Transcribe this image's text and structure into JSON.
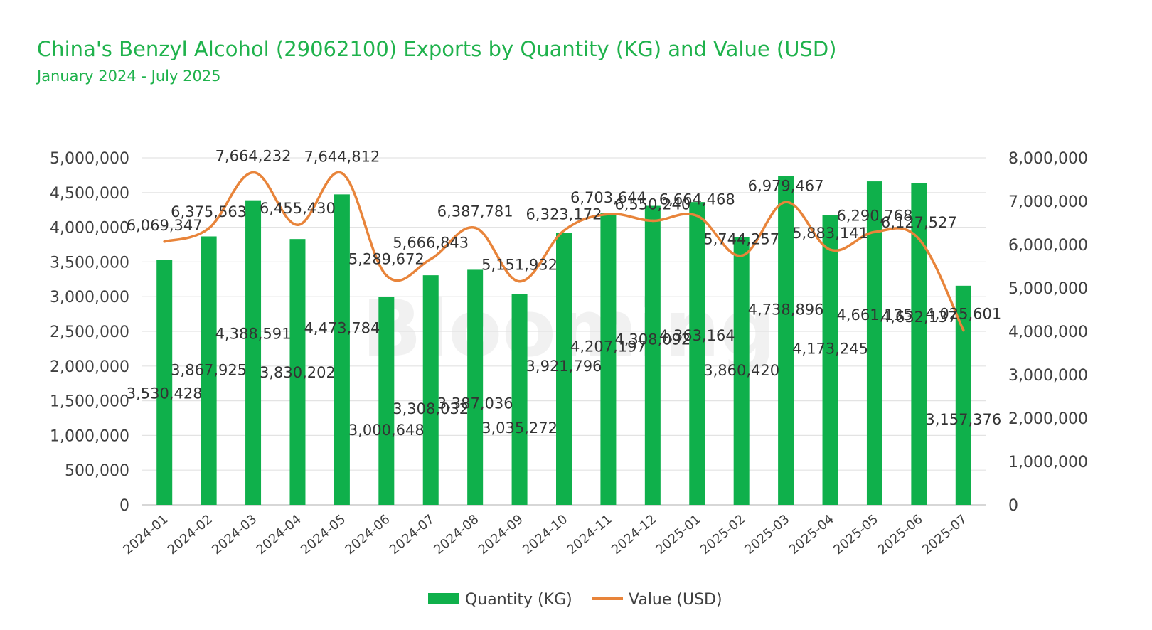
{
  "chart_data": {
    "type": "bar",
    "title": "China's Benzyl Alcohol (29062100) Exports by Quantity (KG) and Value (USD)",
    "subtitle": "January 2024 - July 2025",
    "watermark": "Blooming",
    "categories": [
      "2024-01",
      "2024-02",
      "2024-03",
      "2024-04",
      "2024-05",
      "2024-06",
      "2024-07",
      "2024-08",
      "2024-09",
      "2024-10",
      "2024-11",
      "2024-12",
      "2025-01",
      "2025-02",
      "2025-03",
      "2025-04",
      "2025-05",
      "2025-06",
      "2025-07"
    ],
    "series": [
      {
        "name": "Quantity (KG)",
        "type": "bar",
        "axis": "left",
        "color": "#0fb04b",
        "values": [
          3530428,
          3867925,
          4388591,
          3830202,
          4473784,
          3000648,
          3308032,
          3387036,
          3035272,
          3921796,
          4207197,
          4308092,
          4363164,
          3860420,
          4738896,
          4173245,
          4661135,
          4632137,
          3157376
        ],
        "labels": [
          "3,530,428",
          "3,867,925",
          "4,388,591",
          "3,830,202",
          "4,473,784",
          "3,000,648",
          "3,308,032",
          "3,387,036",
          "3,035,272",
          "3,921,796",
          "4,207,197",
          "4,308,092",
          "4,363,164",
          "3,860,420",
          "4,738,896",
          "4,173,245",
          "4,661,135",
          "4,632,137",
          "3,157,376"
        ]
      },
      {
        "name": "Value (USD)",
        "type": "line",
        "axis": "right",
        "color": "#e8843a",
        "values": [
          6069347,
          6375563,
          7664232,
          6455430,
          7644812,
          5289672,
          5666843,
          6387781,
          5151932,
          6323172,
          6703644,
          6550240,
          6664468,
          5744257,
          6979467,
          5883141,
          6290768,
          6127527,
          4025601
        ],
        "labels": [
          "6,069,347",
          "6,375,563",
          "7,664,232",
          "6,455,430",
          "7,644,812",
          "5,289,672",
          "5,666,843",
          "6,387,781",
          "5,151,932",
          "6,323,172",
          "6,703,644",
          "6,550,240",
          "6,664,468",
          "5,744,257",
          "6,979,467",
          "5,883,141",
          "6,290,768",
          "6,127,527",
          "4,025,601"
        ]
      }
    ],
    "y_left": {
      "min": 0,
      "max": 5000000,
      "step": 500000,
      "ticks": [
        "0",
        "500,000",
        "1,000,000",
        "1,500,000",
        "2,000,000",
        "2,500,000",
        "3,000,000",
        "3,500,000",
        "4,000,000",
        "4,500,000",
        "5,000,000"
      ]
    },
    "y_right": {
      "min": 0,
      "max": 8000000,
      "step": 1000000,
      "ticks": [
        "0",
        "1,000,000",
        "2,000,000",
        "3,000,000",
        "4,000,000",
        "5,000,000",
        "6,000,000",
        "7,000,000",
        "8,000,000"
      ]
    },
    "grid": true,
    "legend": "bottom-center"
  }
}
